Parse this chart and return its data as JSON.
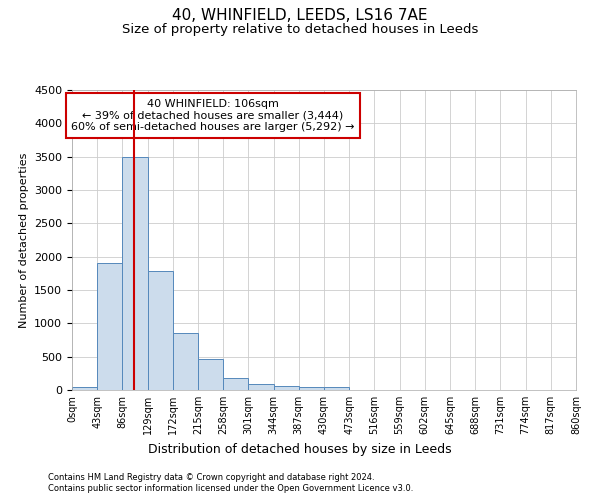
{
  "title": "40, WHINFIELD, LEEDS, LS16 7AE",
  "subtitle": "Size of property relative to detached houses in Leeds",
  "xlabel": "Distribution of detached houses by size in Leeds",
  "ylabel": "Number of detached properties",
  "bin_edges": [
    0,
    43,
    86,
    129,
    172,
    215,
    258,
    301,
    344,
    387,
    430,
    473,
    516,
    559,
    602,
    645,
    688,
    731,
    774,
    817,
    860
  ],
  "bar_heights": [
    50,
    1900,
    3500,
    1780,
    860,
    460,
    175,
    95,
    55,
    50,
    45,
    0,
    0,
    0,
    0,
    0,
    0,
    0,
    0,
    0
  ],
  "bar_color": "#ccdcec",
  "bar_edge_color": "#5588bb",
  "red_line_x": 106,
  "red_line_color": "#cc0000",
  "annotation_line1": "40 WHINFIELD: 106sqm",
  "annotation_line2": "← 39% of detached houses are smaller (3,444)",
  "annotation_line3": "60% of semi-detached houses are larger (5,292) →",
  "annotation_box_color": "#ffffff",
  "annotation_box_edge_color": "#cc0000",
  "ylim": [
    0,
    4500
  ],
  "yticks": [
    0,
    500,
    1000,
    1500,
    2000,
    2500,
    3000,
    3500,
    4000,
    4500
  ],
  "background_color": "#ffffff",
  "plot_bg_color": "#ffffff",
  "grid_color": "#cccccc",
  "footer_line1": "Contains HM Land Registry data © Crown copyright and database right 2024.",
  "footer_line2": "Contains public sector information licensed under the Open Government Licence v3.0.",
  "title_fontsize": 11,
  "subtitle_fontsize": 9.5,
  "tick_label_fontsize": 7,
  "ylabel_fontsize": 8,
  "xlabel_fontsize": 9,
  "annotation_fontsize": 8
}
